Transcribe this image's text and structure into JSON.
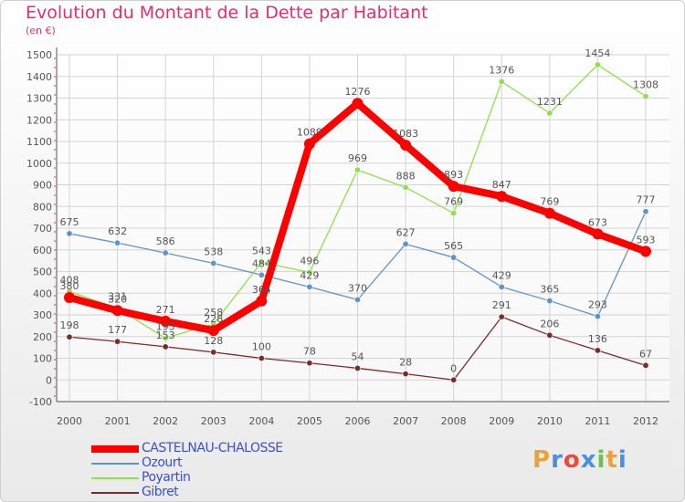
{
  "chart_data": {
    "type": "line",
    "title": "Evolution du Montant de la Dette par Habitant",
    "subtitle": "(en €)",
    "categories": [
      "2000",
      "2001",
      "2002",
      "2003",
      "2004",
      "2005",
      "2006",
      "2007",
      "2008",
      "2009",
      "2010",
      "2011",
      "2012"
    ],
    "ylim": [
      -100,
      1500
    ],
    "yticks": [
      "-100",
      "0",
      "100",
      "200",
      "300",
      "400",
      "500",
      "600",
      "700",
      "800",
      "900",
      "1000",
      "1100",
      "1200",
      "1300",
      "1400",
      "1500"
    ],
    "grid": true,
    "legend_position": "bottom-left",
    "series": [
      {
        "name": "CASTELNAU-CHALOSSE",
        "color": "#ff0000",
        "values": [
          380,
          320,
          271,
          228,
          364,
          1089,
          1276,
          1083,
          893,
          847,
          769,
          673,
          593
        ]
      },
      {
        "name": "Ozourt",
        "color": "#5e95c9",
        "values": [
          675,
          632,
          586,
          538,
          484,
          429,
          370,
          627,
          565,
          429,
          365,
          293,
          777
        ]
      },
      {
        "name": "Poyartin",
        "color": "#8fe04b",
        "values": [
          408,
          331,
          193,
          258,
          543,
          496,
          969,
          888,
          769,
          1376,
          1231,
          1454,
          1308
        ]
      },
      {
        "name": "Gibret",
        "color": "#7a2b2b",
        "values": [
          198,
          177,
          153,
          128,
          100,
          78,
          54,
          28,
          0,
          291,
          206,
          136,
          67
        ]
      }
    ]
  },
  "logo": {
    "text": "Proxiti",
    "letters": [
      "P",
      "r",
      "o",
      "x",
      "i",
      "t",
      "i"
    ],
    "colors": [
      "#e8a33c",
      "#4a90d9",
      "#e84c3d",
      "#4a90d9",
      "#6cc24a",
      "#e8a33c",
      "#4a90d9"
    ]
  }
}
